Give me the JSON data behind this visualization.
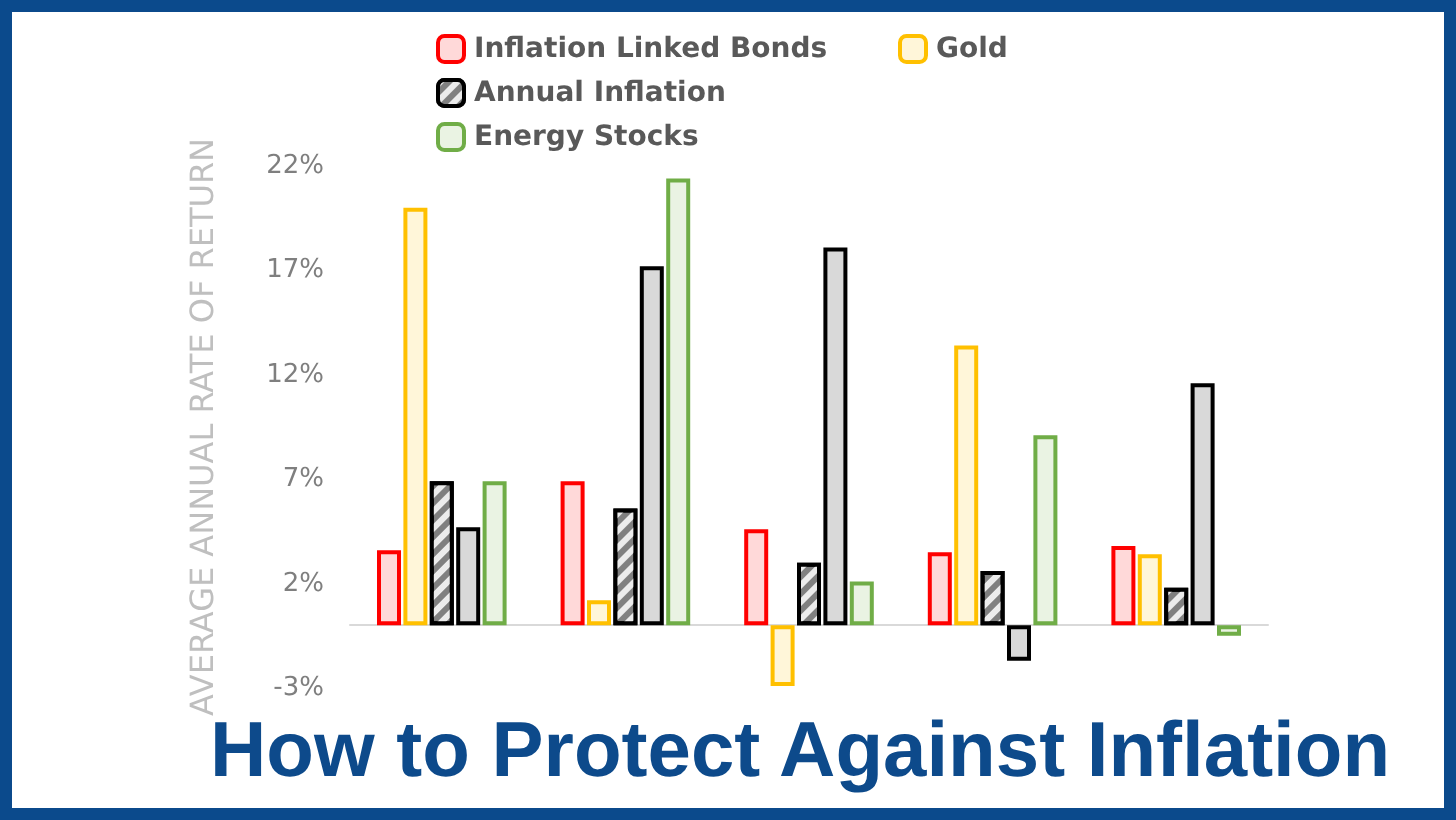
{
  "chart_data": {
    "type": "bar",
    "title": "How to Protect Against Inflation",
    "ylabel": "AVERAGE ANNUAL RATE OF RETURN",
    "categories": [
      null,
      null,
      null,
      null,
      null
    ],
    "series": [
      {
        "name": "Inflation Linked Bonds",
        "color": "#ff0000",
        "values": [
          3.6,
          6.9,
          4.6,
          3.5,
          3.8
        ]
      },
      {
        "name": "Gold",
        "color": "#ffc000",
        "values": [
          20.0,
          1.2,
          -2.9,
          13.4,
          3.4
        ]
      },
      {
        "name": "Annual Inflation",
        "color": "#000000",
        "values": [
          6.9,
          5.6,
          3.0,
          2.6,
          1.8
        ]
      },
      {
        "color": "#000000",
        "values": [
          4.7,
          17.2,
          18.1,
          -1.7,
          11.6
        ]
      },
      {
        "name": "Energy Stocks",
        "color": "#70ad47",
        "values": [
          6.9,
          21.4,
          2.1,
          9.1,
          -0.5
        ]
      }
    ],
    "ylim": [
      -3,
      22
    ],
    "yticks": [
      {
        "value": -3,
        "label": "-3%"
      },
      {
        "value": 2,
        "label": "2%"
      },
      {
        "value": 7,
        "label": "7%"
      },
      {
        "value": 12,
        "label": "12%"
      },
      {
        "value": 17,
        "label": "17%"
      },
      {
        "value": 22,
        "label": "22%"
      }
    ],
    "grid": false,
    "legend": "top"
  }
}
